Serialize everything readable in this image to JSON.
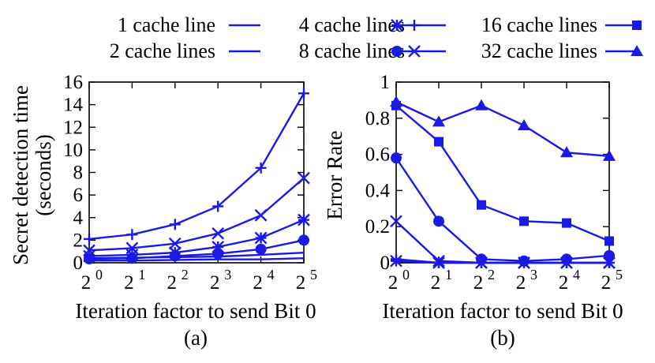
{
  "chart_data": [
    {
      "id": "a",
      "type": "line",
      "caption": "(a)",
      "xlabel": "Iteration factor to send Bit 0",
      "ylabel_lines": [
        "Secret detection time",
        "(seconds)"
      ],
      "x": [
        0,
        1,
        2,
        3,
        4,
        5
      ],
      "xtick_base": "2",
      "xtick_exponents": [
        "0",
        "1",
        "2",
        "3",
        "4",
        "5"
      ],
      "ylim": [
        0,
        16
      ],
      "yticks": [
        0,
        2,
        4,
        6,
        8,
        10,
        12,
        14,
        16
      ],
      "grid": false,
      "series": [
        {
          "name": "1 cache line",
          "marker": "none",
          "values": [
            0.2,
            0.2,
            0.25,
            0.3,
            0.3,
            0.4
          ]
        },
        {
          "name": "2 cache lines",
          "marker": "none",
          "values": [
            0.4,
            0.45,
            0.5,
            0.55,
            0.7,
            0.9
          ]
        },
        {
          "name": "4 cache lines",
          "marker": "plus",
          "values": [
            2.1,
            2.5,
            3.4,
            5.0,
            8.4,
            15.0
          ]
        },
        {
          "name": "8 cache lines",
          "marker": "x",
          "values": [
            1.1,
            1.3,
            1.7,
            2.6,
            4.2,
            7.5
          ]
        },
        {
          "name": "16 cache lines",
          "marker": "star",
          "values": [
            0.6,
            0.7,
            0.9,
            1.4,
            2.2,
            3.8
          ]
        },
        {
          "name": "32 cache lines",
          "marker": "circle",
          "values": [
            0.35,
            0.4,
            0.6,
            0.8,
            1.2,
            2.0
          ]
        }
      ]
    },
    {
      "id": "b",
      "type": "line",
      "caption": "(b)",
      "xlabel": "Iteration factor to send Bit 0",
      "ylabel_lines": [
        "Error Rate"
      ],
      "x": [
        0,
        1,
        2,
        3,
        4,
        5
      ],
      "xtick_base": "2",
      "xtick_exponents": [
        "0",
        "1",
        "2",
        "3",
        "4",
        "5"
      ],
      "ylim": [
        0,
        1
      ],
      "yticks": [
        0,
        0.2,
        0.4,
        0.6,
        0.8,
        1
      ],
      "ytick_labels": [
        "0",
        "0.2",
        "0.4",
        "0.6",
        "0.8",
        "1"
      ],
      "grid": false,
      "series": [
        {
          "name": "4 cache lines",
          "marker": "plus",
          "values": [
            0.02,
            0.0,
            0.0,
            0.0,
            0.0,
            0.0
          ]
        },
        {
          "name": "8 cache lines",
          "marker": "x",
          "values": [
            0.23,
            0.01,
            0.0,
            0.0,
            0.0,
            0.0
          ]
        },
        {
          "name": "16 cache lines",
          "marker": "star",
          "values": [
            0.01,
            0.0,
            0.0,
            0.0,
            0.0,
            0.0
          ]
        },
        {
          "name": "32 cache lines",
          "marker": "circle",
          "values": [
            0.58,
            0.23,
            0.02,
            0.01,
            0.02,
            0.04
          ]
        },
        {
          "name": "16 cache lines",
          "marker": "square",
          "values": [
            0.87,
            0.67,
            0.32,
            0.23,
            0.22,
            0.12
          ]
        },
        {
          "name": "32 cache lines",
          "marker": "triangle",
          "values": [
            0.89,
            0.78,
            0.87,
            0.76,
            0.61,
            0.59
          ]
        }
      ]
    }
  ],
  "legend": {
    "placement": "top",
    "entries": [
      {
        "label": "1 cache line",
        "marker": "none"
      },
      {
        "label": "4 cache lines",
        "marker": "plus"
      },
      {
        "label": "16 cache lines",
        "marker": "square"
      },
      {
        "label": "2 cache lines",
        "marker": "none"
      },
      {
        "label": "8 cache lines",
        "marker": "x"
      },
      {
        "label": "32 cache lines",
        "marker": "triangle"
      }
    ],
    "extra_markers": [
      "star",
      "circle"
    ]
  },
  "colors": {
    "series": "#1a1ae6",
    "axis": "#000000",
    "text": "#000000"
  }
}
